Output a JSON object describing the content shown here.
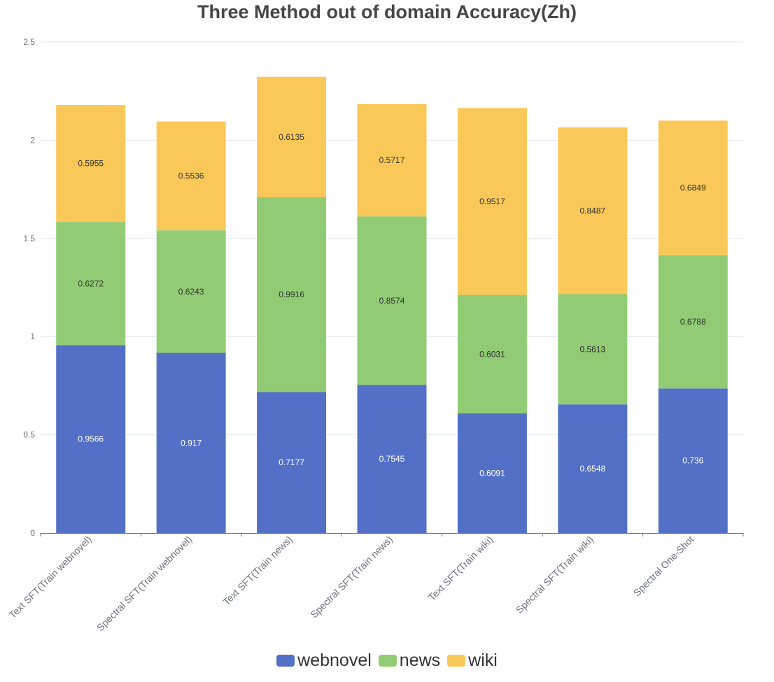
{
  "chart_data": {
    "type": "bar",
    "stacked": true,
    "title": "Three Method out of domain Accuracy(Zh)",
    "xlabel": "",
    "ylabel": "",
    "ylim": [
      0,
      2.5
    ],
    "yticks": [
      "0",
      "0.5",
      "1",
      "1.5",
      "2",
      "2.5"
    ],
    "grid": true,
    "legend_position": "bottom",
    "categories": [
      "Text SFT(Train webnovel)",
      "Spectral SFT(Train webnovel)",
      "Text SFT(Train news)",
      "Spectral SFT(Train news)",
      "Text SFT(Train wiki)",
      "Spectral SFT(Train wiki)",
      "Spectral One-Shot"
    ],
    "series": [
      {
        "name": "webnovel",
        "color": "#5470c6",
        "label_color": "#ffffff",
        "values": [
          0.9566,
          0.917,
          0.7177,
          0.7545,
          0.6091,
          0.6548,
          0.736
        ]
      },
      {
        "name": "news",
        "color": "#91cc75",
        "label_color": "#333333",
        "values": [
          0.6272,
          0.6243,
          0.9916,
          0.8574,
          0.6031,
          0.5613,
          0.6788
        ]
      },
      {
        "name": "wiki",
        "color": "#fac858",
        "label_color": "#333333",
        "values": [
          0.5955,
          0.5536,
          0.6135,
          0.5717,
          0.9517,
          0.8487,
          0.6849
        ]
      }
    ]
  }
}
